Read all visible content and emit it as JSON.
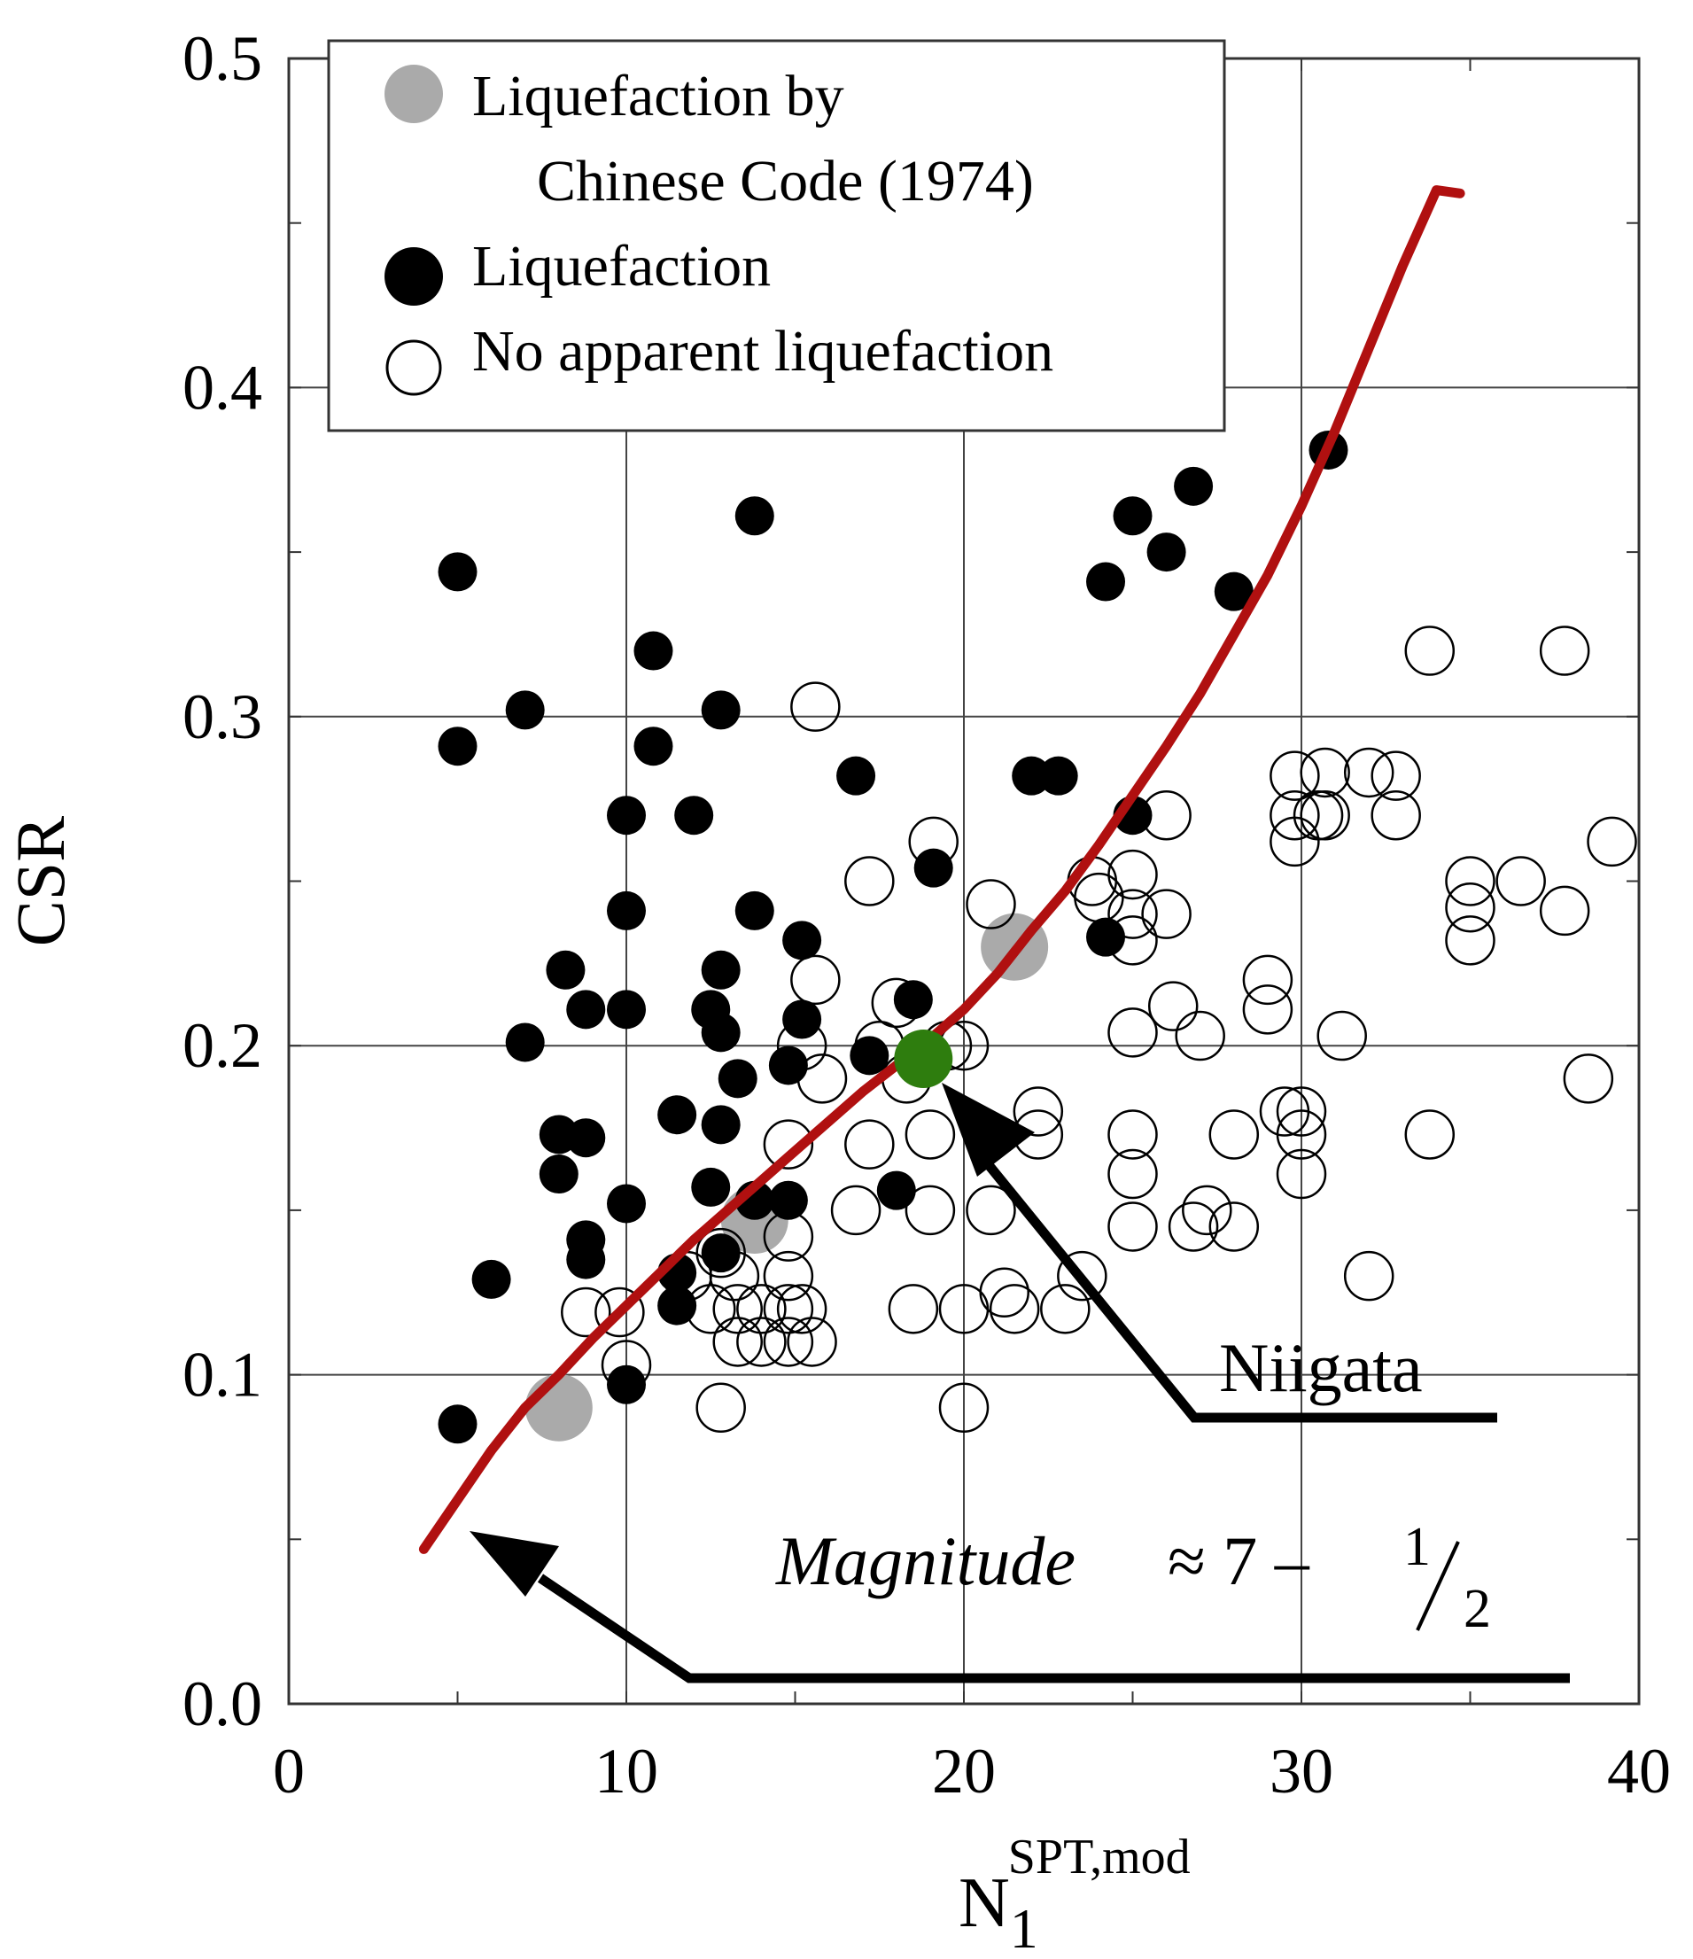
{
  "chart_data": {
    "type": "scatter",
    "xlabel": "N",
    "xlabel_sub": "1",
    "xlabel_sup": "SPT,mod",
    "ylabel": "CSR",
    "xlim": [
      0,
      40
    ],
    "ylim": [
      0,
      0.5
    ],
    "x_ticks": [
      "0",
      "10",
      "20",
      "30",
      "40"
    ],
    "y_ticks": [
      "0.0",
      "0.1",
      "0.2",
      "0.3",
      "0.4",
      "0.5"
    ],
    "grid": true,
    "legend_position": "top-left",
    "legend": {
      "chinese_code_line1": "Liquefaction by",
      "chinese_code_line2": "Chinese Code (1974)",
      "liquefaction": "Liquefaction",
      "no_liquefaction": "No apparent liquefaction"
    },
    "colors": {
      "curve": "#b01010",
      "highlight": "#2e7d0e",
      "chinese_code": "#aaaaaa",
      "liquefaction": "#000000"
    },
    "annotations": {
      "niigata": "Niigata",
      "magnitude_word": "Magnitude",
      "magnitude_approx": "≈ 7 –",
      "magnitude_num": "1",
      "magnitude_den": "2"
    },
    "series": [
      {
        "marker": "chinese_code",
        "points": [
          [
            8.0,
            0.09
          ],
          [
            13.8,
            0.147
          ],
          [
            21.5,
            0.23
          ]
        ]
      },
      {
        "marker": "liquefaction",
        "points": [
          [
            5.0,
            0.344
          ],
          [
            5.0,
            0.291
          ],
          [
            5.0,
            0.085
          ],
          [
            6.0,
            0.129
          ],
          [
            7.0,
            0.302
          ],
          [
            7.0,
            0.201
          ],
          [
            8.2,
            0.223
          ],
          [
            8.0,
            0.173
          ],
          [
            8.0,
            0.161
          ],
          [
            8.8,
            0.211
          ],
          [
            8.8,
            0.172
          ],
          [
            8.8,
            0.141
          ],
          [
            8.8,
            0.135
          ],
          [
            10.0,
            0.27
          ],
          [
            10.0,
            0.241
          ],
          [
            10.0,
            0.211
          ],
          [
            10.0,
            0.152
          ],
          [
            10.0,
            0.097
          ],
          [
            10.8,
            0.32
          ],
          [
            10.8,
            0.291
          ],
          [
            11.5,
            0.179
          ],
          [
            11.5,
            0.121
          ],
          [
            11.5,
            0.131
          ],
          [
            12.0,
            0.27
          ],
          [
            12.5,
            0.211
          ],
          [
            12.5,
            0.157
          ],
          [
            12.8,
            0.302
          ],
          [
            12.8,
            0.223
          ],
          [
            12.8,
            0.204
          ],
          [
            12.8,
            0.176
          ],
          [
            12.8,
            0.137
          ],
          [
            13.3,
            0.19
          ],
          [
            13.8,
            0.361
          ],
          [
            13.8,
            0.241
          ],
          [
            13.8,
            0.153
          ],
          [
            14.8,
            0.194
          ],
          [
            14.8,
            0.153
          ],
          [
            15.2,
            0.232
          ],
          [
            15.2,
            0.208
          ],
          [
            16.8,
            0.282
          ],
          [
            17.2,
            0.197
          ],
          [
            18.0,
            0.156
          ],
          [
            18.5,
            0.214
          ],
          [
            19.1,
            0.254
          ],
          [
            22.0,
            0.282
          ],
          [
            22.8,
            0.282
          ],
          [
            24.2,
            0.341
          ],
          [
            24.2,
            0.233
          ],
          [
            25.0,
            0.361
          ],
          [
            25.0,
            0.27
          ],
          [
            26.0,
            0.35
          ],
          [
            26.8,
            0.37
          ],
          [
            28.0,
            0.338
          ],
          [
            30.8,
            0.381
          ]
        ]
      },
      {
        "marker": "no_liquefaction",
        "points": [
          [
            8.8,
            0.119
          ],
          [
            9.8,
            0.119
          ],
          [
            10.0,
            0.103
          ],
          [
            11.8,
            0.13
          ],
          [
            12.5,
            0.12
          ],
          [
            12.8,
            0.137
          ],
          [
            12.8,
            0.09
          ],
          [
            13.2,
            0.13
          ],
          [
            13.3,
            0.12
          ],
          [
            13.3,
            0.11
          ],
          [
            14.0,
            0.12
          ],
          [
            14.0,
            0.11
          ],
          [
            14.8,
            0.12
          ],
          [
            14.8,
            0.11
          ],
          [
            14.8,
            0.13
          ],
          [
            14.8,
            0.142
          ],
          [
            14.8,
            0.17
          ],
          [
            15.2,
            0.2
          ],
          [
            15.2,
            0.12
          ],
          [
            15.5,
            0.11
          ],
          [
            15.6,
            0.303
          ],
          [
            15.6,
            0.22
          ],
          [
            15.8,
            0.19
          ],
          [
            16.8,
            0.15
          ],
          [
            17.2,
            0.17
          ],
          [
            17.2,
            0.25
          ],
          [
            17.5,
            0.2
          ],
          [
            18.0,
            0.213
          ],
          [
            18.3,
            0.19
          ],
          [
            18.5,
            0.12
          ],
          [
            19.0,
            0.15
          ],
          [
            19.0,
            0.173
          ],
          [
            19.1,
            0.262
          ],
          [
            19.5,
            0.2
          ],
          [
            20.0,
            0.2
          ],
          [
            20.0,
            0.12
          ],
          [
            20.0,
            0.09
          ],
          [
            20.8,
            0.243
          ],
          [
            20.8,
            0.15
          ],
          [
            21.2,
            0.125
          ],
          [
            21.5,
            0.12
          ],
          [
            22.2,
            0.18
          ],
          [
            22.2,
            0.173
          ],
          [
            23.0,
            0.12
          ],
          [
            23.5,
            0.13
          ],
          [
            23.8,
            0.25
          ],
          [
            24.0,
            0.245
          ],
          [
            25.0,
            0.252
          ],
          [
            25.0,
            0.24
          ],
          [
            25.0,
            0.232
          ],
          [
            25.0,
            0.204
          ],
          [
            25.0,
            0.173
          ],
          [
            25.0,
            0.161
          ],
          [
            25.0,
            0.145
          ],
          [
            26.0,
            0.27
          ],
          [
            26.0,
            0.24
          ],
          [
            26.2,
            0.212
          ],
          [
            27.0,
            0.203
          ],
          [
            26.8,
            0.145
          ],
          [
            27.2,
            0.15
          ],
          [
            28.0,
            0.173
          ],
          [
            28.0,
            0.145
          ],
          [
            29.0,
            0.22
          ],
          [
            29.0,
            0.211
          ],
          [
            29.5,
            0.18
          ],
          [
            29.8,
            0.282
          ],
          [
            29.8,
            0.27
          ],
          [
            29.8,
            0.262
          ],
          [
            30.0,
            0.18
          ],
          [
            30.0,
            0.173
          ],
          [
            30.0,
            0.161
          ],
          [
            30.5,
            0.27
          ],
          [
            30.7,
            0.283
          ],
          [
            30.7,
            0.27
          ],
          [
            31.2,
            0.203
          ],
          [
            32.0,
            0.283
          ],
          [
            32.0,
            0.13
          ],
          [
            32.8,
            0.282
          ],
          [
            32.8,
            0.27
          ],
          [
            33.8,
            0.32
          ],
          [
            33.8,
            0.173
          ],
          [
            35.0,
            0.25
          ],
          [
            35.0,
            0.242
          ],
          [
            35.0,
            0.232
          ],
          [
            36.5,
            0.25
          ],
          [
            37.8,
            0.32
          ],
          [
            37.8,
            0.241
          ],
          [
            38.5,
            0.19
          ],
          [
            39.2,
            0.262
          ]
        ]
      },
      {
        "marker": "highlight",
        "points": [
          [
            18.8,
            0.196
          ]
        ]
      },
      {
        "marker": "curve",
        "points": [
          [
            4.0,
            0.047
          ],
          [
            5.0,
            0.062
          ],
          [
            6.0,
            0.077
          ],
          [
            7.0,
            0.09
          ],
          [
            8.0,
            0.1
          ],
          [
            9.0,
            0.111
          ],
          [
            10.0,
            0.121
          ],
          [
            11.0,
            0.131
          ],
          [
            12.0,
            0.141
          ],
          [
            13.0,
            0.15
          ],
          [
            14.0,
            0.159
          ],
          [
            15.0,
            0.168
          ],
          [
            16.0,
            0.177
          ],
          [
            17.0,
            0.186
          ],
          [
            18.0,
            0.194
          ],
          [
            19.0,
            0.202
          ],
          [
            20.0,
            0.211
          ],
          [
            21.0,
            0.222
          ],
          [
            22.0,
            0.235
          ],
          [
            23.0,
            0.247
          ],
          [
            24.0,
            0.261
          ],
          [
            25.0,
            0.276
          ],
          [
            26.0,
            0.291
          ],
          [
            27.0,
            0.307
          ],
          [
            28.0,
            0.325
          ],
          [
            29.0,
            0.343
          ],
          [
            30.0,
            0.364
          ],
          [
            31.0,
            0.387
          ],
          [
            32.0,
            0.412
          ],
          [
            33.0,
            0.437
          ],
          [
            34.0,
            0.46
          ],
          [
            34.7,
            0.459
          ]
        ]
      }
    ]
  }
}
